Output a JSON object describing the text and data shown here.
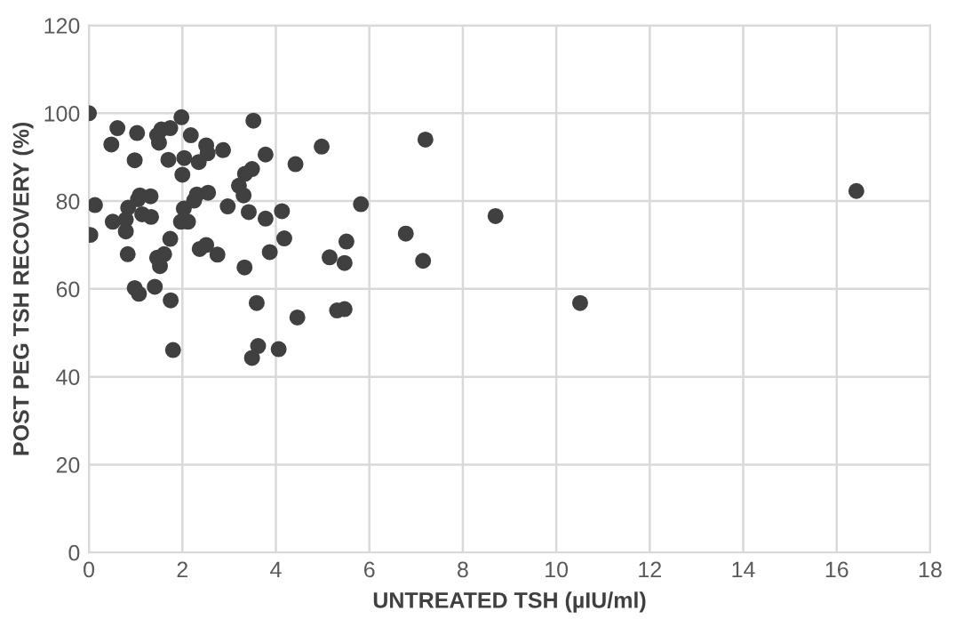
{
  "chart_data": {
    "type": "scatter",
    "xlabel": "UNTREATED TSH (µIU/ml)",
    "ylabel": "POST PEG TSH RECOVERY (%)",
    "x": [
      0,
      0.61,
      0.48,
      1.03,
      0.98,
      1.46,
      1.55,
      1.74,
      1.5,
      1.98,
      2.18,
      1.7,
      2.04,
      2.0,
      2.35,
      2.51,
      2.54,
      2.87,
      3.52,
      3.78,
      4.42,
      3.34,
      3.49,
      3.21,
      3.31,
      2.97,
      3.42,
      3.78,
      4.13,
      4.18,
      3.87,
      3.33,
      3.59,
      4.46,
      3.62,
      3.49,
      4.06,
      0.13,
      0.03,
      0.51,
      0.79,
      0.84,
      0.79,
      1.05,
      1.09,
      1.32,
      1.14,
      1.33,
      0.83,
      1.46,
      1.61,
      1.52,
      1.74,
      1.97,
      2.12,
      2.03,
      2.25,
      2.31,
      2.55,
      2.37,
      2.51,
      2.75,
      0.98,
      1.07,
      1.41,
      1.75,
      1.8,
      4.98,
      7.2,
      5.82,
      8.7,
      5.51,
      5.15,
      5.47,
      6.78,
      7.15,
      5.31,
      5.47,
      16.42,
      10.51
    ],
    "values": [
      100,
      96.6,
      92.9,
      95.5,
      89.3,
      95,
      96.3,
      96.6,
      93.3,
      99.1,
      95,
      89.4,
      89.8,
      86,
      88.9,
      92.7,
      90.9,
      91.6,
      98.3,
      90.6,
      88.4,
      86.2,
      87.3,
      83.5,
      81.3,
      78.8,
      77.5,
      76,
      77.7,
      71.5,
      68.4,
      64.9,
      56.8,
      53.5,
      47,
      44.3,
      46.3,
      79.1,
      72.3,
      75.3,
      75.8,
      78.5,
      73.1,
      80.4,
      81.3,
      81.1,
      77,
      76.4,
      67.9,
      67.1,
      67.9,
      65.2,
      71.4,
      75.3,
      75.3,
      78.3,
      80.1,
      81.5,
      81.9,
      69.1,
      70,
      67.8,
      60.2,
      58.9,
      60.5,
      57.4,
      46.1,
      92.4,
      94,
      79.3,
      76.6,
      70.8,
      67.2,
      65.9,
      72.6,
      66.4,
      55.1,
      55.4,
      82.3,
      56.8
    ],
    "color": "#404040",
    "marker": "circle",
    "xlim": [
      0,
      18
    ],
    "xticks": [
      0,
      2,
      4,
      6,
      8,
      10,
      12,
      14,
      16,
      18
    ],
    "ylim": [
      0,
      120
    ],
    "yticks": [
      0,
      20,
      40,
      60,
      80,
      100,
      120
    ],
    "grid": true
  }
}
